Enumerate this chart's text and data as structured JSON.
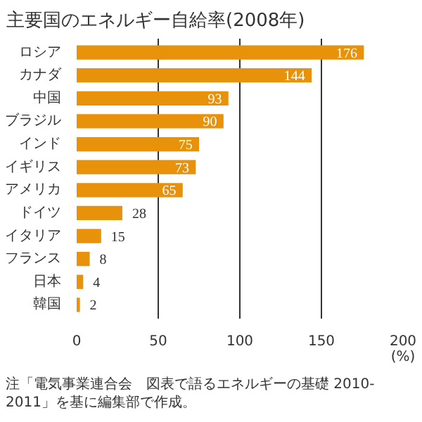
{
  "chart_data": {
    "type": "bar",
    "orientation": "horizontal",
    "title": "主要国のエネルギー自給率(2008年)",
    "categories": [
      "ロシア",
      "カナダ",
      "中国",
      "ブラジル",
      "インド",
      "イギリス",
      "アメリカ",
      "ドイツ",
      "イタリア",
      "フランス",
      "日本",
      "韓国"
    ],
    "values": [
      176,
      144,
      93,
      90,
      75,
      73,
      65,
      28,
      15,
      8,
      4,
      2
    ],
    "color": "#e8920c",
    "data_labels": true,
    "xlim": [
      0,
      200
    ],
    "xticks": [
      0,
      50,
      100,
      150,
      200
    ],
    "grid": "x",
    "xlabel": "(%)",
    "annotations": [
      "注「電気事業連合会　図表で語るエネルギーの基礎 2010-2011」を基に編集部で作成。"
    ]
  }
}
